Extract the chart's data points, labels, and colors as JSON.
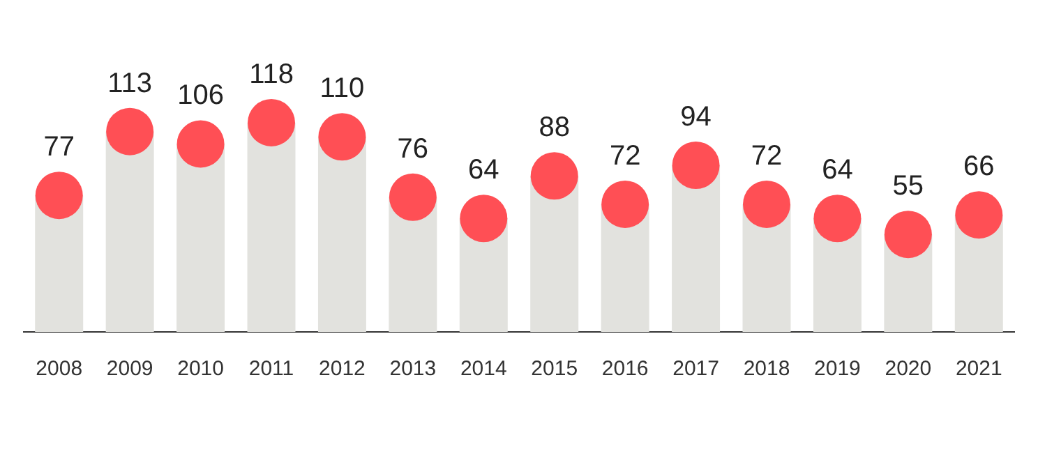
{
  "chart_data": {
    "type": "bar",
    "categories": [
      "2008",
      "2009",
      "2010",
      "2011",
      "2012",
      "2013",
      "2014",
      "2015",
      "2016",
      "2017",
      "2018",
      "2019",
      "2020",
      "2021"
    ],
    "series": [
      {
        "color": "#e2e2de",
        "values": [
          77,
          113,
          106,
          118,
          110,
          76,
          64,
          88,
          72,
          94,
          72,
          64,
          55,
          66
        ],
        "value_labels": [
          "77",
          "113",
          "106",
          "118",
          "110",
          "76",
          "64",
          "88",
          "72",
          "94",
          "72",
          "64",
          "55",
          "66"
        ]
      },
      {
        "type": "scatter",
        "color": "#ff4f55",
        "values": [
          77,
          113,
          106,
          118,
          110,
          76,
          64,
          88,
          72,
          94,
          72,
          64,
          55,
          66
        ]
      }
    ],
    "tick_labels": "x",
    "marker": "circle"
  }
}
